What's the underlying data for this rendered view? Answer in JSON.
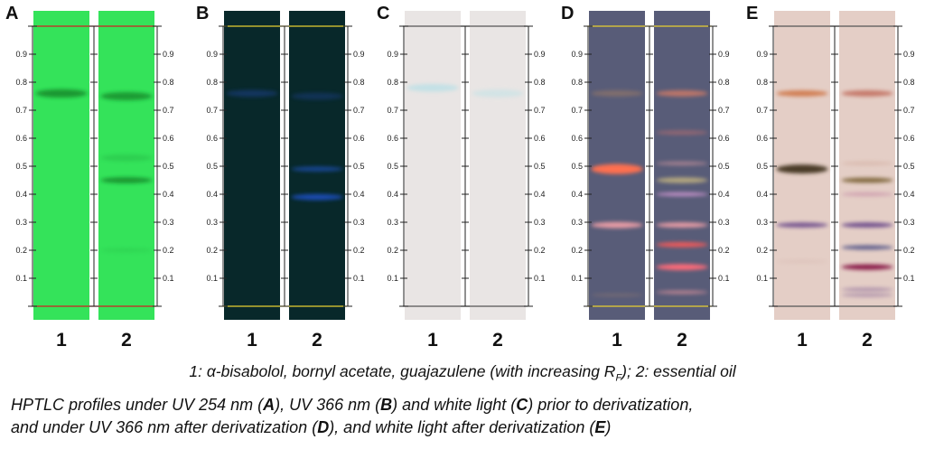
{
  "panels": [
    {
      "letter": "A",
      "mode": "UV 254 nm",
      "plate_color": "#34e35a",
      "lanes": [
        {
          "label": "1",
          "bands": [
            {
              "rf": 0.76,
              "color": "#128a2c",
              "intensity": 0.85,
              "width": 0.03
            }
          ]
        },
        {
          "label": "2",
          "bands": [
            {
              "rf": 0.75,
              "color": "#128a2c",
              "intensity": 0.8,
              "width": 0.03
            },
            {
              "rf": 0.53,
              "color": "#1fa23a",
              "intensity": 0.3,
              "width": 0.025
            },
            {
              "rf": 0.45,
              "color": "#128a2c",
              "intensity": 0.85,
              "width": 0.022
            },
            {
              "rf": 0.2,
              "color": "#1fa23a",
              "intensity": 0.2,
              "width": 0.015
            }
          ]
        }
      ]
    },
    {
      "letter": "B",
      "mode": "UV 366 nm",
      "plate_color": "#08282a",
      "lanes": [
        {
          "label": "1",
          "bands": [
            {
              "rf": 0.76,
              "color": "#1f3f8a",
              "intensity": 0.55,
              "width": 0.025
            }
          ]
        },
        {
          "label": "2",
          "bands": [
            {
              "rf": 0.75,
              "color": "#1f3f8a",
              "intensity": 0.45,
              "width": 0.025
            },
            {
              "rf": 0.49,
              "color": "#1f4fb0",
              "intensity": 0.75,
              "width": 0.018
            },
            {
              "rf": 0.39,
              "color": "#1f50c0",
              "intensity": 0.9,
              "width": 0.022
            }
          ]
        }
      ]
    },
    {
      "letter": "C",
      "mode": "white light",
      "plate_color": "#e9e5e4",
      "lanes": [
        {
          "label": "1",
          "bands": [
            {
              "rf": 0.78,
              "color": "#bde0e6",
              "intensity": 0.85,
              "width": 0.028
            }
          ]
        },
        {
          "label": "2",
          "bands": [
            {
              "rf": 0.76,
              "color": "#c6e3e6",
              "intensity": 0.65,
              "width": 0.028
            }
          ]
        }
      ]
    },
    {
      "letter": "D",
      "mode": "UV 366 nm after derivatization",
      "plate_color": "#585c78",
      "lanes": [
        {
          "label": "1",
          "bands": [
            {
              "rf": 0.76,
              "color": "#9b7a66",
              "intensity": 0.6,
              "width": 0.022
            },
            {
              "rf": 0.49,
              "color": "#ff7050",
              "intensity": 1.0,
              "width": 0.036
            },
            {
              "rf": 0.29,
              "color": "#f2a0a8",
              "intensity": 0.95,
              "width": 0.022
            },
            {
              "rf": 0.04,
              "color": "#a08070",
              "intensity": 0.35,
              "width": 0.012
            }
          ]
        },
        {
          "label": "2",
          "bands": [
            {
              "rf": 0.76,
              "color": "#d07a66",
              "intensity": 0.85,
              "width": 0.022
            },
            {
              "rf": 0.62,
              "color": "#c27070",
              "intensity": 0.55,
              "width": 0.016
            },
            {
              "rf": 0.51,
              "color": "#d69aa0",
              "intensity": 0.6,
              "width": 0.014
            },
            {
              "rf": 0.45,
              "color": "#c0b080",
              "intensity": 0.9,
              "width": 0.02
            },
            {
              "rf": 0.4,
              "color": "#d49ad6",
              "intensity": 0.85,
              "width": 0.014
            },
            {
              "rf": 0.29,
              "color": "#f2a0a8",
              "intensity": 0.95,
              "width": 0.018
            },
            {
              "rf": 0.22,
              "color": "#f05a5a",
              "intensity": 1.0,
              "width": 0.018
            },
            {
              "rf": 0.14,
              "color": "#ff6a78",
              "intensity": 1.0,
              "width": 0.022
            },
            {
              "rf": 0.05,
              "color": "#d8909a",
              "intensity": 0.75,
              "width": 0.012
            }
          ]
        }
      ]
    },
    {
      "letter": "E",
      "mode": "white light after derivatization",
      "plate_color": "#e4cec6",
      "lanes": [
        {
          "label": "1",
          "bands": [
            {
              "rf": 0.76,
              "color": "#d07a4e",
              "intensity": 0.95,
              "width": 0.022
            },
            {
              "rf": 0.49,
              "color": "#4a3a28",
              "intensity": 1.0,
              "width": 0.032
            },
            {
              "rf": 0.29,
              "color": "#6a4a8a",
              "intensity": 0.9,
              "width": 0.018
            },
            {
              "rf": 0.16,
              "color": "#d0b0a8",
              "intensity": 0.3,
              "width": 0.012
            }
          ]
        },
        {
          "label": "2",
          "bands": [
            {
              "rf": 0.76,
              "color": "#c27060",
              "intensity": 0.9,
              "width": 0.022
            },
            {
              "rf": 0.51,
              "color": "#caa090",
              "intensity": 0.4,
              "width": 0.014
            },
            {
              "rf": 0.45,
              "color": "#7a6236",
              "intensity": 0.95,
              "width": 0.018
            },
            {
              "rf": 0.4,
              "color": "#c890a8",
              "intensity": 0.7,
              "width": 0.014
            },
            {
              "rf": 0.29,
              "color": "#6a4a8a",
              "intensity": 0.95,
              "width": 0.018
            },
            {
              "rf": 0.21,
              "color": "#5a5a8a",
              "intensity": 0.95,
              "width": 0.016
            },
            {
              "rf": 0.14,
              "color": "#8a1a4a",
              "intensity": 1.0,
              "width": 0.02
            },
            {
              "rf": 0.06,
              "color": "#8a6a9a",
              "intensity": 0.6,
              "width": 0.01
            },
            {
              "rf": 0.04,
              "color": "#8a6a9a",
              "intensity": 0.55,
              "width": 0.01
            }
          ]
        }
      ]
    }
  ],
  "rf_ticks": [
    "0.1",
    "0.2",
    "0.3",
    "0.4",
    "0.5",
    "0.6",
    "0.7",
    "0.8",
    "0.9"
  ],
  "legend": {
    "prefix": "1: α-bisabolol, bornyl acetate, guajazulene (with increasing R",
    "subscript": "F",
    "suffix": "); 2: essential oil"
  },
  "caption": {
    "p1": "HPTLC profiles under UV 254 nm (",
    "l1": "A",
    "p2": "), UV 366 nm (",
    "l2": "B",
    "p3": ") and white light (",
    "l3": "C",
    "p4": ") prior to derivatization,",
    "p5": "and under UV 366 nm after derivatization (",
    "l4": "D",
    "p6": "), and white light after derivatization (",
    "l5": "E",
    "p7": ")"
  }
}
